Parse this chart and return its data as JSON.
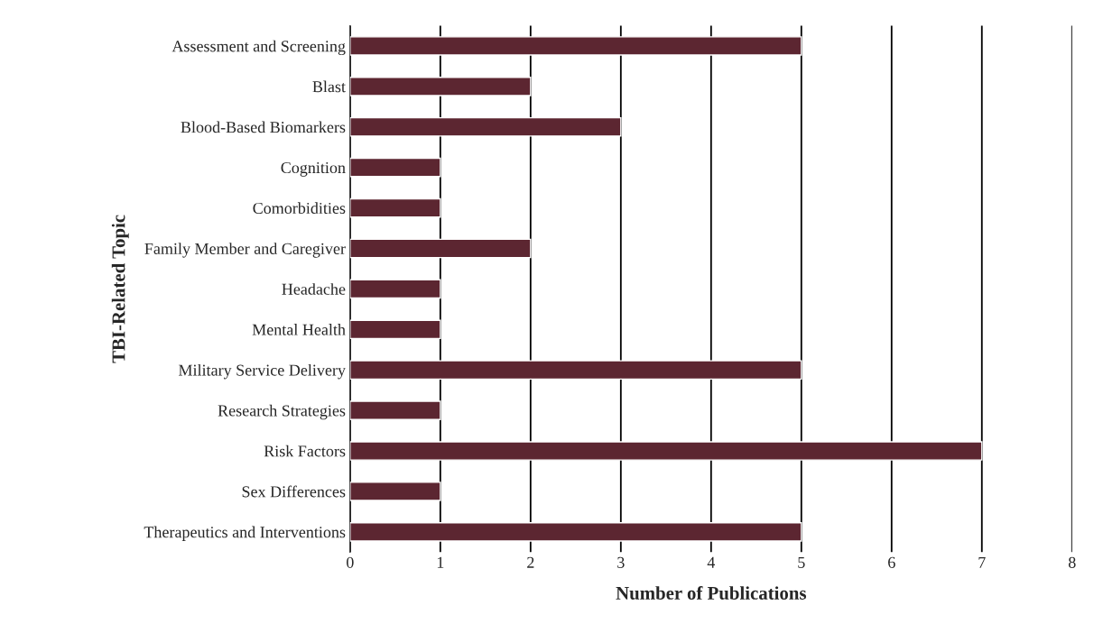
{
  "chart_data": {
    "type": "bar",
    "orientation": "horizontal",
    "xlabel": "Number of Publications",
    "ylabel": "TBI-Related Topic",
    "categories": [
      "Assessment and Screening",
      "Blast",
      "Blood-Based Biomarkers",
      "Cognition",
      "Comorbidities",
      "Family Member and Caregiver",
      "Headache",
      "Mental Health",
      "Military Service Delivery",
      "Research Strategies",
      "Risk Factors",
      "Sex Differences",
      "Therapeutics and Interventions"
    ],
    "values": [
      5,
      2,
      3,
      1,
      1,
      2,
      1,
      1,
      5,
      1,
      7,
      1,
      5
    ],
    "color": "#5c2631",
    "xlim": [
      0,
      8
    ],
    "xticks": [
      0,
      1,
      2,
      3,
      4,
      5,
      6,
      7,
      8
    ],
    "grid": "x",
    "legend": false
  }
}
